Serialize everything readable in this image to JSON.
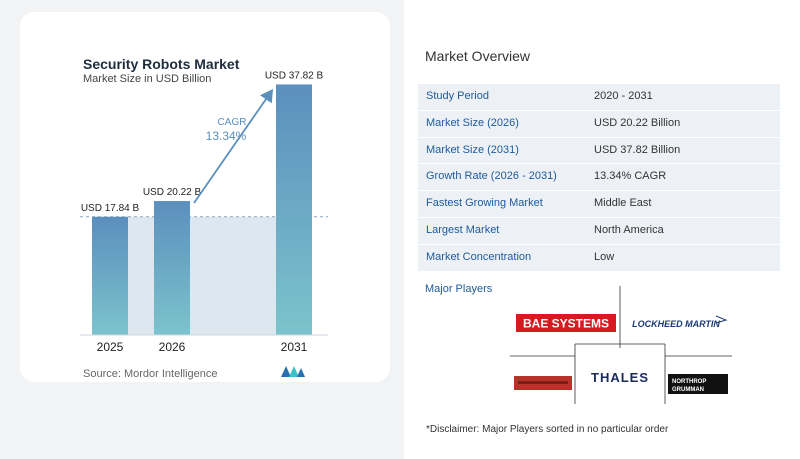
{
  "chart_data": {
    "type": "bar",
    "title": "Security Robots Market",
    "subtitle": "Market Size in USD Billion",
    "categories": [
      "2025",
      "2026",
      "2031"
    ],
    "values": [
      17.84,
      20.22,
      37.82
    ],
    "data_labels": [
      "USD 17.84 B",
      "USD 20.22 B",
      "USD 37.82 B"
    ],
    "ylim": [
      0,
      40
    ],
    "grid": false,
    "annotation": {
      "label": "CAGR",
      "value": "13.34%"
    },
    "colors": {
      "bar_top": "#5b8fbd",
      "bar_bottom": "#7cc3cc",
      "band": "#dde7f0",
      "arrow": "#5b8fbd",
      "cagr_text": "#5b8fbd"
    }
  },
  "source": "Source:  Mordor Intelligence",
  "overview": {
    "title": "Market Overview",
    "rows": [
      {
        "label": "Study Period",
        "value": "2020 - 2031"
      },
      {
        "label": "Market Size (2026)",
        "value": "USD 20.22 Billion"
      },
      {
        "label": "Market Size (2031)",
        "value": "USD 37.82 Billion"
      },
      {
        "label": "Growth Rate (2026 - 2031)",
        "value": "13.34% CAGR"
      },
      {
        "label": "Fastest Growing Market",
        "value": "Middle East"
      },
      {
        "label": "Largest Market",
        "value": "North America"
      },
      {
        "label": "Market Concentration",
        "value": "Low"
      }
    ]
  },
  "players": {
    "title": "Major Players",
    "logos": [
      "BAE SYSTEMS",
      "LOCKHEED MARTIN",
      "THALES",
      "NORTHROP",
      "GRUMMAN"
    ]
  },
  "disclaimer": "*Disclaimer: Major Players sorted in no particular order"
}
